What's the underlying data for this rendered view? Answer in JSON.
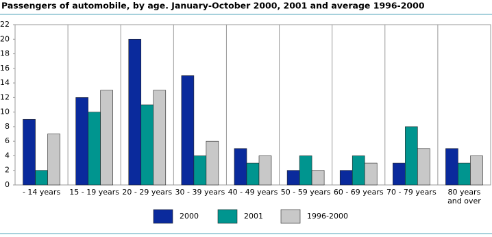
{
  "chart_data": {
    "type": "bar",
    "title": "Passengers of automobile, by age. January-October 2000, 2001 and average 1996-2000",
    "categories": [
      "- 14 years",
      "15 - 19 years",
      "20 - 29 years",
      "30 - 39 years",
      "40 - 49 years",
      "50 - 59 years",
      "60 - 69 years",
      "70 - 79 years",
      "80 years\nand over"
    ],
    "series": [
      {
        "name": "2000",
        "color": "#0a2a9c",
        "values": [
          9,
          12,
          20,
          15,
          5,
          2,
          2,
          3,
          5
        ]
      },
      {
        "name": "2001",
        "color": "#00958f",
        "values": [
          2,
          10,
          11,
          4,
          3,
          4,
          4,
          8,
          3
        ]
      },
      {
        "name": "1996-2000",
        "color": "#c8c8c8",
        "values": [
          7,
          13,
          13,
          6,
          4,
          2,
          3,
          5,
          4
        ]
      }
    ],
    "ylim": [
      0,
      22
    ],
    "yticks": [
      0,
      2,
      4,
      6,
      8,
      10,
      12,
      14,
      16,
      18,
      20,
      22
    ]
  }
}
